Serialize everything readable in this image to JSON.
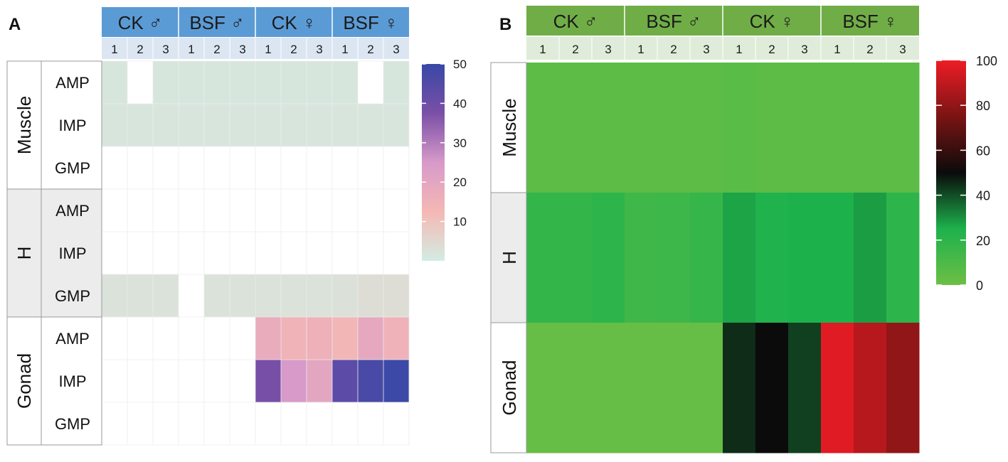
{
  "panels": [
    {
      "letter": "A"
    },
    {
      "letter": "B"
    }
  ],
  "chart_data": [
    {
      "type": "heatmap",
      "panel": "A",
      "groups": [
        "CK ♂",
        "BSF ♂",
        "CK ♀",
        "BSF ♀"
      ],
      "replicates": [
        "1",
        "2",
        "3"
      ],
      "columns": [
        "CK♂-1",
        "CK♂-2",
        "CK♂-3",
        "BSF♂-1",
        "BSF♂-2",
        "BSF♂-3",
        "CK♀-1",
        "CK♀-2",
        "CK♀-3",
        "BSF♀-1",
        "BSF♀-2",
        "BSF♀-3"
      ],
      "tissues": [
        {
          "name": "Muscle",
          "rows": [
            "AMP",
            "IMP",
            "GMP"
          ]
        },
        {
          "name": "H",
          "rows": [
            "AMP",
            "IMP",
            "GMP"
          ]
        },
        {
          "name": "Gonad",
          "rows": [
            "AMP",
            "IMP",
            "GMP"
          ]
        }
      ],
      "values": [
        [
          1.5,
          null,
          1.5,
          1.5,
          1.5,
          1.5,
          1.5,
          1.5,
          1.5,
          1.5,
          null,
          1.5
        ],
        [
          1.8,
          1.8,
          1.8,
          1.7,
          1.7,
          1.7,
          1.7,
          1.7,
          1.7,
          1.7,
          1.7,
          1.7
        ],
        [
          null,
          null,
          null,
          null,
          null,
          null,
          null,
          null,
          null,
          null,
          null,
          null
        ],
        [
          null,
          null,
          null,
          null,
          null,
          null,
          null,
          null,
          null,
          null,
          null,
          null
        ],
        [
          null,
          null,
          null,
          null,
          null,
          null,
          null,
          null,
          null,
          null,
          null,
          null
        ],
        [
          2.5,
          2.5,
          2.5,
          null,
          2.5,
          2.5,
          2.5,
          2.5,
          2.5,
          3.0,
          3.5,
          3.5
        ],
        [
          null,
          null,
          null,
          null,
          null,
          null,
          17.5,
          14.5,
          15.5,
          13.5,
          19,
          15
        ],
        [
          null,
          null,
          null,
          null,
          null,
          null,
          38,
          25,
          20,
          43,
          47,
          49
        ],
        [
          null,
          null,
          null,
          null,
          null,
          null,
          null,
          null,
          null,
          null,
          null,
          null
        ]
      ],
      "colorbar": {
        "ticks": [
          10,
          20,
          30,
          40,
          50
        ],
        "range": [
          0,
          50
        ],
        "colors": [
          "#d3ece3",
          "#f5b8b4",
          "#d79ac9",
          "#7a4fa7",
          "#3848a6"
        ]
      },
      "header_color": "#5b9bd5",
      "subheader_color": "#dce6f2"
    },
    {
      "type": "heatmap",
      "panel": "B",
      "groups": [
        "CK ♂",
        "BSF ♂",
        "CK ♀",
        "BSF ♀"
      ],
      "replicates": [
        "1",
        "2",
        "3"
      ],
      "columns": [
        "CK♂-1",
        "CK♂-2",
        "CK♂-3",
        "BSF♂-1",
        "BSF♂-2",
        "BSF♂-3",
        "CK♀-1",
        "CK♀-2",
        "CK♀-3",
        "BSF♀-1",
        "BSF♀-2",
        "BSF♀-3"
      ],
      "tissues": [
        {
          "name": "Muscle"
        },
        {
          "name": "H"
        },
        {
          "name": "Gonad"
        }
      ],
      "values": [
        [
          5,
          5,
          5,
          5,
          5,
          5,
          6,
          5,
          5,
          5,
          5,
          5
        ],
        [
          18,
          18,
          20,
          14,
          15,
          17,
          27,
          24,
          25,
          25,
          28,
          20
        ],
        [
          2,
          2,
          2,
          2,
          2,
          2,
          45,
          50,
          42,
          97,
          88,
          80
        ]
      ],
      "colorbar": {
        "ticks": [
          0,
          20,
          40,
          60,
          80,
          100
        ],
        "range": [
          0,
          100
        ],
        "colors": [
          "#6cbf45",
          "#1db14c",
          "#0b0b0b",
          "#7a1414",
          "#ee1c25"
        ]
      },
      "header_color": "#70ad47",
      "subheader_color": "#dfecd9"
    }
  ]
}
